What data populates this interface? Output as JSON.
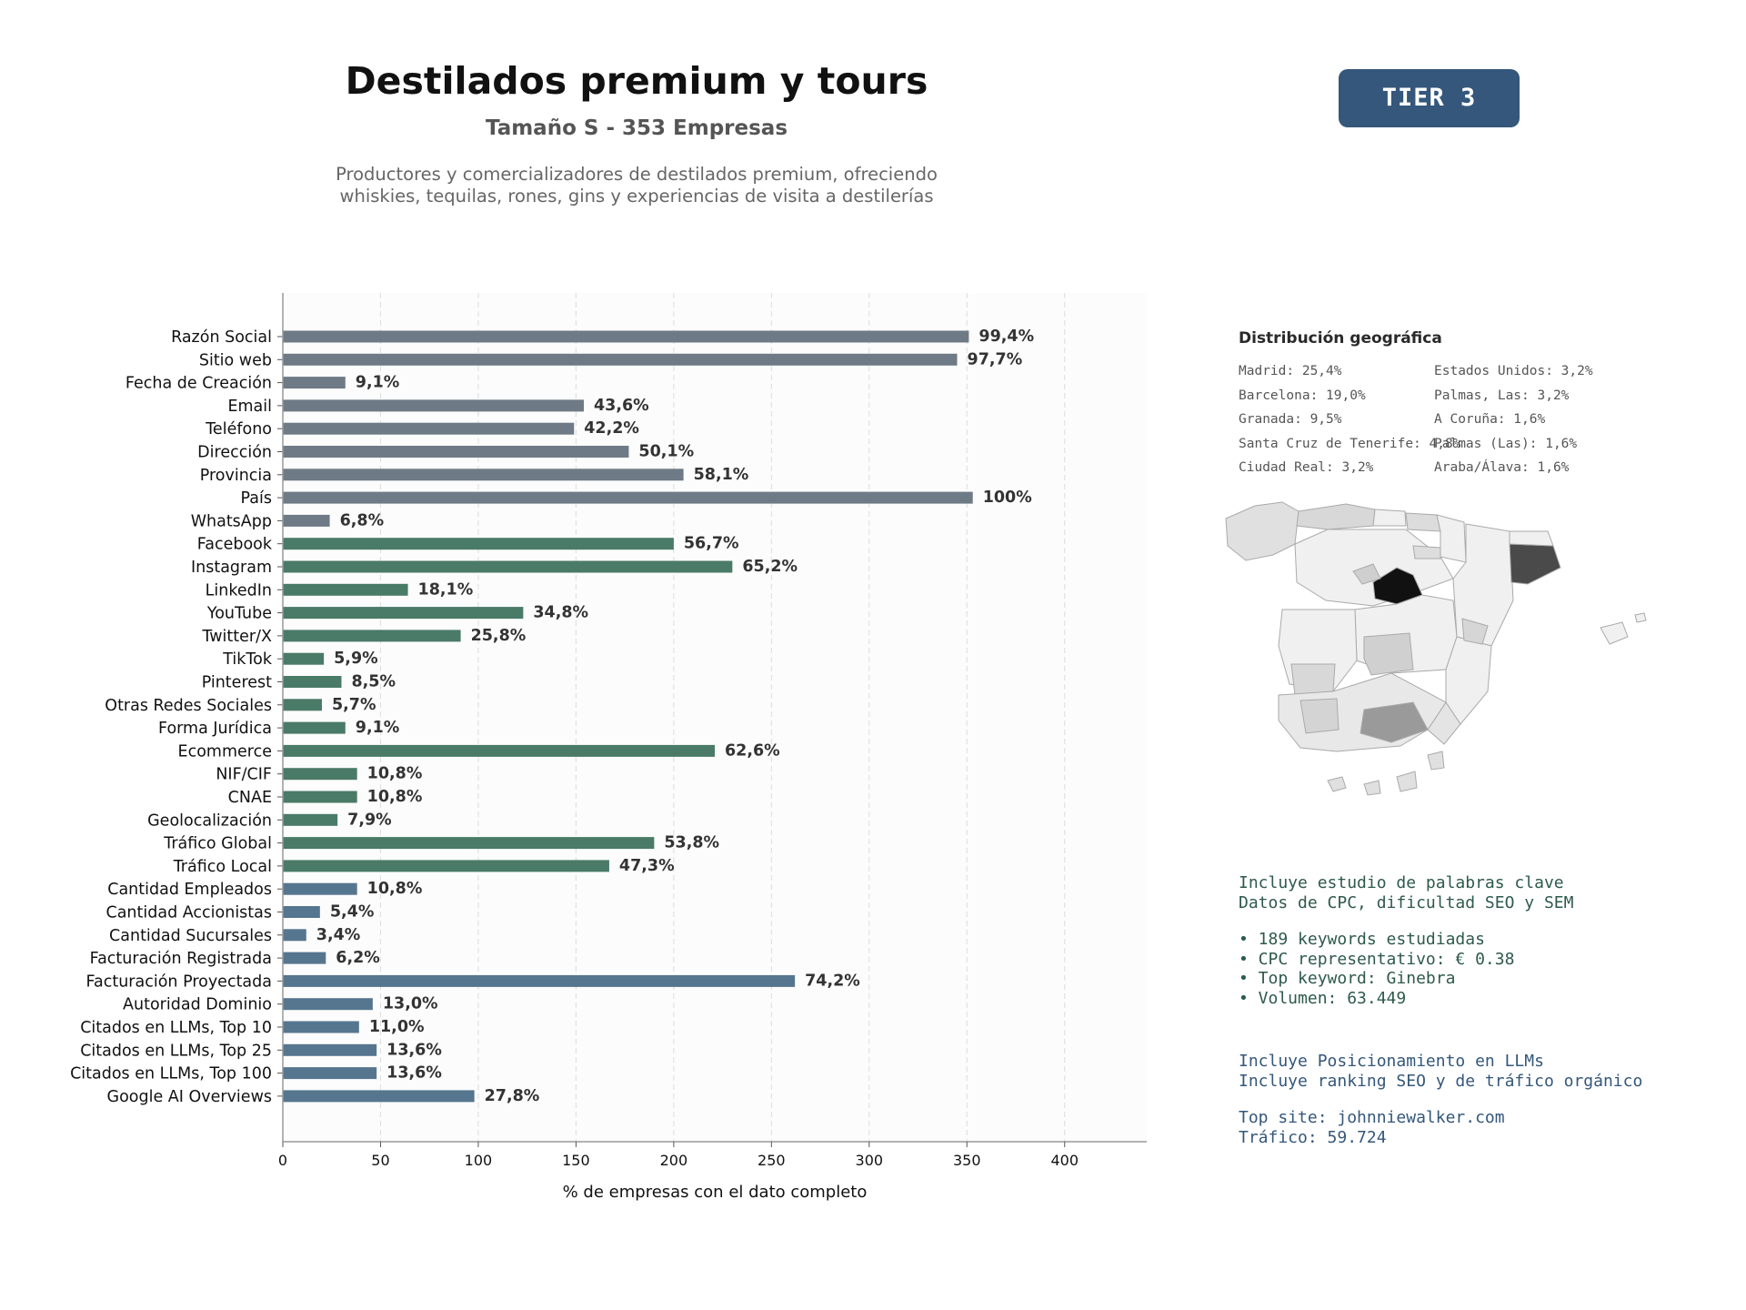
{
  "header": {
    "title": "Destilados premium y tours",
    "subtitle": "Tamaño S - 353 Empresas",
    "description_line1": "Productores y comercializadores de destilados premium, ofreciendo",
    "description_line2": "whiskies, tequilas, rones, gins y experiencias de visita a destilerías"
  },
  "badge": {
    "label": "TIER 3",
    "color": "#34577b"
  },
  "colors": {
    "contact": "#6e7a85",
    "digital": "#4a7a68",
    "business": "#56768f"
  },
  "chart_data": {
    "type": "bar",
    "orientation": "horizontal",
    "xlabel": "% de empresas con el dato completo",
    "xlim": [
      0,
      442
    ],
    "xticks": [
      0,
      50,
      100,
      150,
      200,
      250,
      300,
      350,
      400
    ],
    "grid": "vertical dashed",
    "categories": [
      "Razón Social",
      "Sitio web",
      "Fecha de Creación",
      "Email",
      "Teléfono",
      "Dirección",
      "Provincia",
      "País",
      "WhatsApp",
      "Facebook",
      "Instagram",
      "LinkedIn",
      "YouTube",
      "Twitter/X",
      "TikTok",
      "Pinterest",
      "Otras Redes Sociales",
      "Forma Jurídica",
      "Ecommerce",
      "NIF/CIF",
      "CNAE",
      "Geolocalización",
      "Tráfico Global",
      "Tráfico Local",
      "Cantidad Empleados",
      "Cantidad Accionistas",
      "Cantidad Sucursales",
      "Facturación Registrada",
      "Facturación Proyectada",
      "Autoridad Dominio",
      "Citados en LLMs, Top 10",
      "Citados en LLMs, Top 25",
      "Citados en LLMs, Top 100",
      "Google AI Overviews"
    ],
    "values": [
      351,
      345,
      32,
      154,
      149,
      177,
      205,
      353,
      24,
      200,
      230,
      64,
      123,
      91,
      21,
      30,
      20,
      32,
      221,
      38,
      38,
      28,
      190,
      167,
      38,
      19,
      12,
      22,
      262,
      46,
      39,
      48,
      48,
      98
    ],
    "labels": [
      "99,4%",
      "97,7%",
      "9,1%",
      "43,6%",
      "42,2%",
      "50,1%",
      "58,1%",
      "100%",
      "6,8%",
      "56,7%",
      "65,2%",
      "18,1%",
      "34,8%",
      "25,8%",
      "5,9%",
      "8,5%",
      "5,7%",
      "9,1%",
      "62,6%",
      "10,8%",
      "10,8%",
      "7,9%",
      "53,8%",
      "47,3%",
      "10,8%",
      "5,4%",
      "3,4%",
      "6,2%",
      "74,2%",
      "13,0%",
      "11,0%",
      "13,6%",
      "13,6%",
      "27,8%"
    ],
    "groups": [
      "contact",
      "contact",
      "contact",
      "contact",
      "contact",
      "contact",
      "contact",
      "contact",
      "contact",
      "digital",
      "digital",
      "digital",
      "digital",
      "digital",
      "digital",
      "digital",
      "digital",
      "digital",
      "digital",
      "digital",
      "digital",
      "digital",
      "digital",
      "digital",
      "business",
      "business",
      "business",
      "business",
      "business",
      "business",
      "business",
      "business",
      "business",
      "business"
    ]
  },
  "geo": {
    "title": "Distribución geográfica",
    "items_left": [
      "Madrid: 25,4%",
      "Barcelona: 19,0%",
      "Granada: 9,5%",
      "Santa Cruz de Tenerife: 4,8%",
      "Ciudad Real: 3,2%"
    ],
    "items_right": [
      "Estados Unidos: 3,2%",
      "Palmas, Las: 3,2%",
      "A Coruña: 1,6%",
      "Palmas (Las): 1,6%",
      "Araba/Álava: 1,6%"
    ]
  },
  "keywords": {
    "line1": "Incluye estudio de palabras clave",
    "line2": "Datos de CPC, dificultad SEO y SEM",
    "bullet1": "• 189 keywords estudiadas",
    "bullet2": "• CPC representativo: € 0.38",
    "bullet3": "• Top keyword: Ginebra",
    "bullet4": "• Volumen: 63.449"
  },
  "llm": {
    "line1": "Incluye Posicionamiento en LLMs",
    "line2": "Incluye ranking SEO y de tráfico orgánico",
    "top_site": "Top site: johnniewalker.com",
    "traffic": "Tráfico: 59.724"
  }
}
